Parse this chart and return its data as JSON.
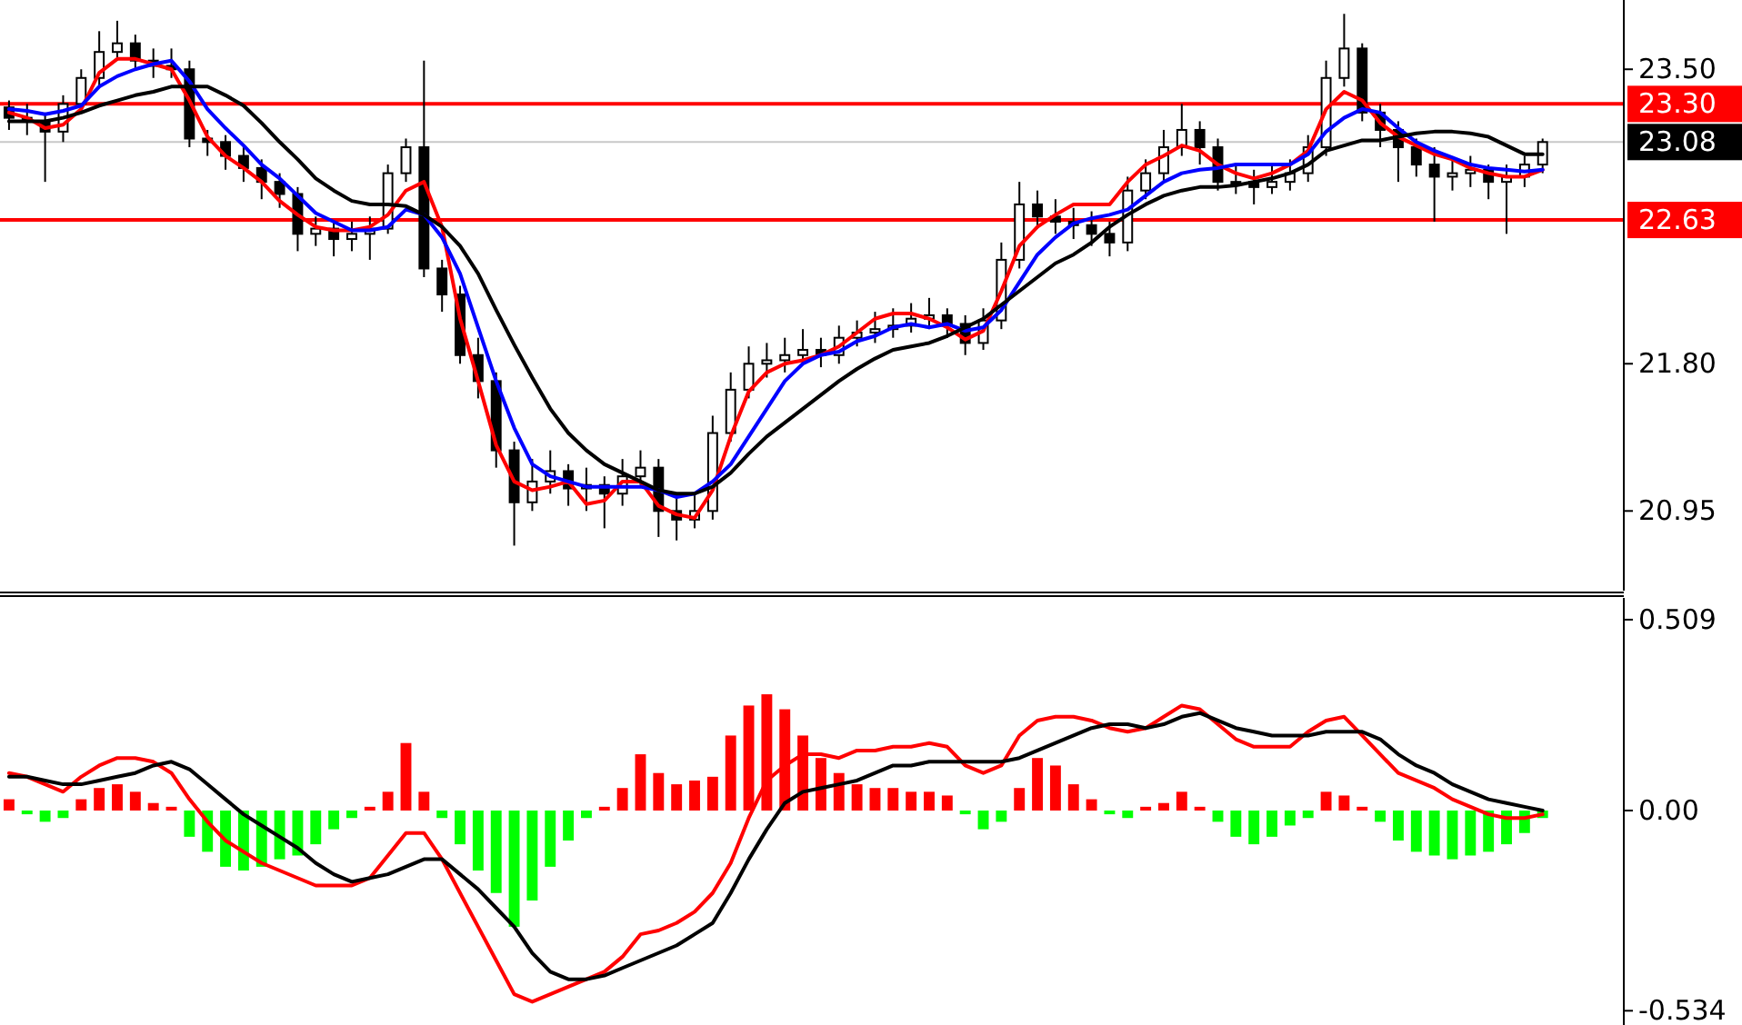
{
  "chart_data": [
    {
      "type": "candlestick",
      "tick_labels": "y",
      "categories": [
        null,
        null,
        null,
        null,
        null,
        null,
        null,
        null,
        null,
        null,
        null,
        null,
        null,
        null,
        null,
        null,
        null,
        null,
        null,
        null,
        null,
        null,
        null,
        null,
        null,
        null,
        null,
        null,
        null,
        null,
        null,
        null,
        null,
        null,
        null,
        null,
        null,
        null,
        null,
        null,
        null,
        null,
        null,
        null,
        null,
        null,
        null,
        null,
        null,
        null,
        null,
        null,
        null,
        null,
        null,
        null,
        null,
        null,
        null,
        null,
        null,
        null,
        null,
        null,
        null,
        null,
        null,
        null,
        null,
        null,
        null,
        null,
        null,
        null,
        null,
        null,
        null,
        null,
        null,
        null,
        null,
        null,
        null,
        null,
        null,
        null
      ],
      "ohlc": [
        [
          23.28,
          23.32,
          23.15,
          23.22
        ],
        [
          23.22,
          23.3,
          23.12,
          23.2
        ],
        [
          23.2,
          23.25,
          22.85,
          23.14
        ],
        [
          23.14,
          23.35,
          23.08,
          23.3
        ],
        [
          23.3,
          23.5,
          23.25,
          23.45
        ],
        [
          23.45,
          23.72,
          23.4,
          23.6
        ],
        [
          23.6,
          23.78,
          23.55,
          23.65
        ],
        [
          23.65,
          23.7,
          23.5,
          23.55
        ],
        [
          23.55,
          23.62,
          23.45,
          23.52
        ],
        [
          23.52,
          23.62,
          23.45,
          23.5
        ],
        [
          23.5,
          23.55,
          23.05,
          23.1
        ],
        [
          23.1,
          23.15,
          23.0,
          23.08
        ],
        [
          23.08,
          23.12,
          22.92,
          23.0
        ],
        [
          23.0,
          23.05,
          22.85,
          22.93
        ],
        [
          22.93,
          22.98,
          22.75,
          22.85
        ],
        [
          22.85,
          22.9,
          22.7,
          22.78
        ],
        [
          22.78,
          22.82,
          22.45,
          22.55
        ],
        [
          22.55,
          22.65,
          22.48,
          22.58
        ],
        [
          22.58,
          22.62,
          22.42,
          22.52
        ],
        [
          22.52,
          22.62,
          22.45,
          22.55
        ],
        [
          22.55,
          22.65,
          22.4,
          22.58
        ],
        [
          22.58,
          22.95,
          22.55,
          22.9
        ],
        [
          22.9,
          23.1,
          22.85,
          23.05
        ],
        [
          23.05,
          23.55,
          22.3,
          22.35
        ],
        [
          22.35,
          22.4,
          22.1,
          22.2
        ],
        [
          22.2,
          22.25,
          21.8,
          21.85
        ],
        [
          21.85,
          21.95,
          21.6,
          21.7
        ],
        [
          21.7,
          21.75,
          21.2,
          21.3
        ],
        [
          21.3,
          21.35,
          20.75,
          21.0
        ],
        [
          21.0,
          21.25,
          20.95,
          21.12
        ],
        [
          21.12,
          21.3,
          21.05,
          21.18
        ],
        [
          21.18,
          21.22,
          20.98,
          21.08
        ],
        [
          21.08,
          21.2,
          20.95,
          21.1
        ],
        [
          21.1,
          21.15,
          20.85,
          21.05
        ],
        [
          21.05,
          21.25,
          20.98,
          21.15
        ],
        [
          21.15,
          21.3,
          21.1,
          21.2
        ],
        [
          21.2,
          21.25,
          20.8,
          20.95
        ],
        [
          20.95,
          21.05,
          20.78,
          20.9
        ],
        [
          20.9,
          21.05,
          20.85,
          20.95
        ],
        [
          20.95,
          21.5,
          20.9,
          21.4
        ],
        [
          21.4,
          21.75,
          21.35,
          21.65
        ],
        [
          21.65,
          21.9,
          21.6,
          21.8
        ],
        [
          21.8,
          21.92,
          21.72,
          21.82
        ],
        [
          21.82,
          21.95,
          21.75,
          21.85
        ],
        [
          21.85,
          22.0,
          21.8,
          21.88
        ],
        [
          21.88,
          21.95,
          21.78,
          21.85
        ],
        [
          21.85,
          22.02,
          21.8,
          21.95
        ],
        [
          21.95,
          22.05,
          21.9,
          21.98
        ],
        [
          21.98,
          22.1,
          21.92,
          22.0
        ],
        [
          22.0,
          22.12,
          21.95,
          22.02
        ],
        [
          22.02,
          22.15,
          21.98,
          22.06
        ],
        [
          22.06,
          22.18,
          22.0,
          22.08
        ],
        [
          22.08,
          22.12,
          21.95,
          22.03
        ],
        [
          22.03,
          22.08,
          21.85,
          21.92
        ],
        [
          21.92,
          22.12,
          21.88,
          22.05
        ],
        [
          22.05,
          22.5,
          22.0,
          22.4
        ],
        [
          22.4,
          22.85,
          22.35,
          22.72
        ],
        [
          22.72,
          22.8,
          22.58,
          22.65
        ],
        [
          22.65,
          22.75,
          22.55,
          22.62
        ],
        [
          22.62,
          22.7,
          22.52,
          22.6
        ],
        [
          22.6,
          22.68,
          22.48,
          22.55
        ],
        [
          22.55,
          22.62,
          22.42,
          22.5
        ],
        [
          22.5,
          22.88,
          22.45,
          22.8
        ],
        [
          22.8,
          22.98,
          22.75,
          22.9
        ],
        [
          22.9,
          23.15,
          22.85,
          23.05
        ],
        [
          23.05,
          23.3,
          23.0,
          23.15
        ],
        [
          23.15,
          23.2,
          22.95,
          23.05
        ],
        [
          23.05,
          23.1,
          22.8,
          22.85
        ],
        [
          22.85,
          22.95,
          22.78,
          22.85
        ],
        [
          22.85,
          22.92,
          22.72,
          22.82
        ],
        [
          22.82,
          22.95,
          22.78,
          22.85
        ],
        [
          22.85,
          22.98,
          22.8,
          22.9
        ],
        [
          22.9,
          23.12,
          22.85,
          23.05
        ],
        [
          23.05,
          23.55,
          23.0,
          23.45
        ],
        [
          23.45,
          23.82,
          23.4,
          23.62
        ],
        [
          23.62,
          23.65,
          23.2,
          23.25
        ],
        [
          23.25,
          23.3,
          23.05,
          23.15
        ],
        [
          23.15,
          23.2,
          22.85,
          23.05
        ],
        [
          23.05,
          23.1,
          22.88,
          22.95
        ],
        [
          22.95,
          23.05,
          22.62,
          22.88
        ],
        [
          22.88,
          22.98,
          22.8,
          22.9
        ],
        [
          22.9,
          23.0,
          22.82,
          22.92
        ],
        [
          22.92,
          22.95,
          22.75,
          22.85
        ],
        [
          22.85,
          22.95,
          22.55,
          22.88
        ],
        [
          22.88,
          23.0,
          22.82,
          22.95
        ],
        [
          22.95,
          23.1,
          22.9,
          23.08
        ]
      ],
      "series": [
        {
          "type": "line",
          "color": "#ff0000",
          "values": [
            23.25,
            23.22,
            23.16,
            23.18,
            23.27,
            23.48,
            23.56,
            23.56,
            23.53,
            23.5,
            23.32,
            23.11,
            23.0,
            22.93,
            22.85,
            22.74,
            22.66,
            22.59,
            22.57,
            22.57,
            22.59,
            22.66,
            22.8,
            22.85,
            22.59,
            22.06,
            21.7,
            21.33,
            21.12,
            21.07,
            21.09,
            21.12,
            20.99,
            21.01,
            21.12,
            21.12,
            20.98,
            20.93,
            20.91,
            21.07,
            21.38,
            21.64,
            21.75,
            21.8,
            21.82,
            21.85,
            21.9,
            21.98,
            22.06,
            22.09,
            22.09,
            22.06,
            22.01,
            21.94,
            21.99,
            22.22,
            22.48,
            22.59,
            22.66,
            22.72,
            22.72,
            22.72,
            22.85,
            22.95,
            23.0,
            23.06,
            23.03,
            22.95,
            22.9,
            22.87,
            22.9,
            22.95,
            23.03,
            23.27,
            23.37,
            23.32,
            23.19,
            23.11,
            23.06,
            23.01,
            22.98,
            22.93,
            22.9,
            22.88,
            22.88,
            22.92
          ]
        },
        {
          "type": "line",
          "color": "#0000ff",
          "values": [
            23.27,
            23.26,
            23.24,
            23.26,
            23.29,
            23.4,
            23.46,
            23.5,
            23.53,
            23.55,
            23.43,
            23.27,
            23.16,
            23.06,
            22.95,
            22.87,
            22.77,
            22.67,
            22.62,
            22.57,
            22.57,
            22.59,
            22.69,
            22.66,
            22.53,
            22.32,
            22.01,
            21.7,
            21.43,
            21.22,
            21.15,
            21.12,
            21.09,
            21.09,
            21.09,
            21.09,
            21.07,
            21.03,
            21.05,
            21.12,
            21.22,
            21.38,
            21.54,
            21.7,
            21.8,
            21.85,
            21.87,
            21.93,
            21.96,
            22.01,
            22.03,
            22.01,
            22.03,
            21.99,
            22.01,
            22.11,
            22.27,
            22.43,
            22.53,
            22.61,
            22.64,
            22.66,
            22.69,
            22.77,
            22.85,
            22.9,
            22.92,
            22.93,
            22.95,
            22.95,
            22.95,
            22.95,
            23.01,
            23.14,
            23.22,
            23.27,
            23.25,
            23.16,
            23.08,
            23.03,
            22.99,
            22.95,
            22.93,
            22.92,
            22.91,
            22.92
          ]
        },
        {
          "type": "line",
          "color": "#000000",
          "values": [
            23.2,
            23.2,
            23.2,
            23.22,
            23.25,
            23.29,
            23.32,
            23.35,
            23.37,
            23.4,
            23.4,
            23.4,
            23.35,
            23.29,
            23.19,
            23.08,
            22.98,
            22.87,
            22.8,
            22.74,
            22.72,
            22.72,
            22.71,
            22.66,
            22.59,
            22.48,
            22.32,
            22.11,
            21.91,
            21.72,
            21.54,
            21.4,
            21.3,
            21.22,
            21.17,
            21.12,
            21.07,
            21.05,
            21.05,
            21.09,
            21.17,
            21.28,
            21.38,
            21.46,
            21.54,
            21.62,
            21.7,
            21.77,
            21.83,
            21.88,
            21.9,
            21.92,
            21.96,
            22.01,
            22.06,
            22.14,
            22.22,
            22.3,
            22.38,
            22.43,
            22.5,
            22.59,
            22.66,
            22.72,
            22.77,
            22.8,
            22.82,
            22.82,
            22.83,
            22.85,
            22.87,
            22.9,
            22.95,
            23.03,
            23.06,
            23.09,
            23.09,
            23.11,
            23.13,
            23.14,
            23.14,
            23.13,
            23.11,
            23.06,
            23.01,
            23.01
          ]
        }
      ],
      "ylim": [
        20.49,
        23.9
      ],
      "yticks": [
        {
          "value": 23.5,
          "label": "23.50"
        },
        {
          "value": 21.8,
          "label": "21.80"
        },
        20.95
      ],
      "ref_lines": [
        {
          "axis": "y",
          "value": 23.3,
          "label": "23.30",
          "color": "#ff0000"
        },
        {
          "axis": "y",
          "value": 23.08,
          "label": "23.08",
          "color": "#c8c8c8"
        },
        {
          "axis": "y",
          "value": 22.63,
          "label": "22.63",
          "color": "#ff0000"
        }
      ]
    },
    {
      "type": "bar",
      "tick_labels": "y",
      "categories": [
        null,
        null,
        null,
        null,
        null,
        null,
        null,
        null,
        null,
        null,
        null,
        null,
        null,
        null,
        null,
        null,
        null,
        null,
        null,
        null,
        null,
        null,
        null,
        null,
        null,
        null,
        null,
        null,
        null,
        null,
        null,
        null,
        null,
        null,
        null,
        null,
        null,
        null,
        null,
        null,
        null,
        null,
        null,
        null,
        null,
        null,
        null,
        null,
        null,
        null,
        null,
        null,
        null,
        null,
        null,
        null,
        null,
        null,
        null,
        null,
        null,
        null,
        null,
        null,
        null,
        null,
        null,
        null,
        null,
        null,
        null,
        null,
        null,
        null,
        null,
        null,
        null,
        null,
        null,
        null,
        null,
        null,
        null,
        null,
        null,
        null
      ],
      "series": [
        {
          "values": [
            0.03,
            -0.01,
            -0.03,
            -0.02,
            0.03,
            0.06,
            0.07,
            0.05,
            0.02,
            0.01,
            -0.07,
            -0.11,
            -0.15,
            -0.16,
            -0.15,
            -0.13,
            -0.12,
            -0.09,
            -0.05,
            -0.02,
            0.01,
            0.05,
            0.18,
            0.05,
            -0.02,
            -0.09,
            -0.16,
            -0.22,
            -0.31,
            -0.24,
            -0.15,
            -0.08,
            -0.02,
            0.01,
            0.06,
            0.15,
            0.1,
            0.07,
            0.08,
            0.09,
            0.2,
            0.28,
            0.31,
            0.27,
            0.2,
            0.14,
            0.1,
            0.07,
            0.06,
            0.06,
            0.05,
            0.05,
            0.04,
            -0.01,
            -0.05,
            -0.03,
            0.06,
            0.14,
            0.12,
            0.07,
            0.03,
            -0.01,
            -0.02,
            0.01,
            0.02,
            0.05,
            0.01,
            -0.03,
            -0.07,
            -0.09,
            -0.07,
            -0.04,
            -0.02,
            0.05,
            0.04,
            0.01,
            -0.03,
            -0.08,
            -0.11,
            -0.12,
            -0.13,
            -0.12,
            -0.11,
            -0.09,
            -0.06,
            -0.02
          ],
          "colors": [
            "#ff0000",
            "#00ff00",
            "#00ff00",
            "#00ff00",
            "#ff0000",
            "#ff0000",
            "#ff0000",
            "#ff0000",
            "#ff0000",
            "#ff0000",
            "#00ff00",
            "#00ff00",
            "#00ff00",
            "#00ff00",
            "#00ff00",
            "#00ff00",
            "#00ff00",
            "#00ff00",
            "#00ff00",
            "#00ff00",
            "#ff0000",
            "#ff0000",
            "#ff0000",
            "#ff0000",
            "#00ff00",
            "#00ff00",
            "#00ff00",
            "#00ff00",
            "#00ff00",
            "#00ff00",
            "#00ff00",
            "#00ff00",
            "#00ff00",
            "#ff0000",
            "#ff0000",
            "#ff0000",
            "#ff0000",
            "#ff0000",
            "#ff0000",
            "#ff0000",
            "#ff0000",
            "#ff0000",
            "#ff0000",
            "#ff0000",
            "#ff0000",
            "#ff0000",
            "#ff0000",
            "#ff0000",
            "#ff0000",
            "#ff0000",
            "#ff0000",
            "#ff0000",
            "#ff0000",
            "#00ff00",
            "#00ff00",
            "#00ff00",
            "#ff0000",
            "#ff0000",
            "#ff0000",
            "#ff0000",
            "#ff0000",
            "#00ff00",
            "#00ff00",
            "#ff0000",
            "#ff0000",
            "#ff0000",
            "#ff0000",
            "#00ff00",
            "#00ff00",
            "#00ff00",
            "#00ff00",
            "#00ff00",
            "#00ff00",
            "#ff0000",
            "#ff0000",
            "#ff0000",
            "#00ff00",
            "#00ff00",
            "#00ff00",
            "#00ff00",
            "#00ff00",
            "#00ff00",
            "#00ff00",
            "#00ff00",
            "#00ff00",
            "#00ff00"
          ]
        },
        {
          "type": "line",
          "color": "#ff0000",
          "values": [
            0.1,
            0.09,
            0.07,
            0.05,
            0.09,
            0.12,
            0.14,
            0.14,
            0.13,
            0.1,
            0.03,
            -0.03,
            -0.08,
            -0.11,
            -0.14,
            -0.16,
            -0.18,
            -0.2,
            -0.2,
            -0.2,
            -0.18,
            -0.12,
            -0.06,
            -0.06,
            -0.13,
            -0.22,
            -0.31,
            -0.4,
            -0.49,
            -0.51,
            -0.49,
            -0.47,
            -0.45,
            -0.43,
            -0.39,
            -0.33,
            -0.32,
            -0.3,
            -0.27,
            -0.22,
            -0.14,
            -0.02,
            0.08,
            0.12,
            0.15,
            0.15,
            0.14,
            0.16,
            0.16,
            0.17,
            0.17,
            0.18,
            0.17,
            0.12,
            0.1,
            0.12,
            0.2,
            0.24,
            0.25,
            0.25,
            0.24,
            0.22,
            0.21,
            0.22,
            0.25,
            0.28,
            0.27,
            0.23,
            0.19,
            0.17,
            0.17,
            0.17,
            0.21,
            0.24,
            0.25,
            0.2,
            0.15,
            0.1,
            0.08,
            0.06,
            0.03,
            0.01,
            -0.01,
            -0.02,
            -0.02,
            -0.01
          ]
        },
        {
          "type": "line",
          "color": "#000000",
          "values": [
            0.09,
            0.09,
            0.08,
            0.07,
            0.07,
            0.08,
            0.09,
            0.1,
            0.12,
            0.13,
            0.11,
            0.07,
            0.03,
            -0.01,
            -0.04,
            -0.07,
            -0.1,
            -0.14,
            -0.17,
            -0.19,
            -0.18,
            -0.17,
            -0.15,
            -0.13,
            -0.13,
            -0.17,
            -0.21,
            -0.26,
            -0.31,
            -0.38,
            -0.43,
            -0.45,
            -0.45,
            -0.44,
            -0.42,
            -0.4,
            -0.38,
            -0.36,
            -0.33,
            -0.3,
            -0.22,
            -0.13,
            -0.05,
            0.02,
            0.05,
            0.06,
            0.07,
            0.08,
            0.1,
            0.12,
            0.12,
            0.13,
            0.13,
            0.13,
            0.13,
            0.13,
            0.14,
            0.16,
            0.18,
            0.2,
            0.22,
            0.23,
            0.23,
            0.22,
            0.23,
            0.25,
            0.26,
            0.24,
            0.22,
            0.21,
            0.2,
            0.2,
            0.2,
            0.21,
            0.21,
            0.21,
            0.19,
            0.15,
            0.12,
            0.1,
            0.07,
            0.05,
            0.03,
            0.02,
            0.01,
            0.0
          ]
        }
      ],
      "ylim": [
        -0.572,
        0.567
      ],
      "yticks": [
        0.509,
        {
          "value": 0,
          "label": "0.00"
        },
        -0.534
      ]
    }
  ]
}
